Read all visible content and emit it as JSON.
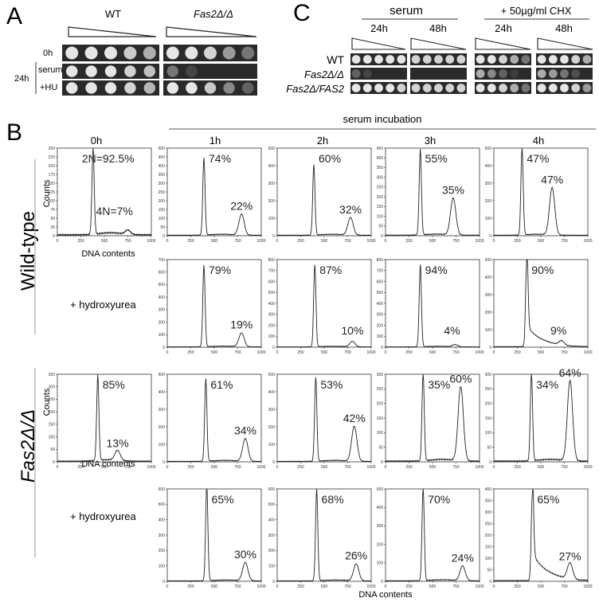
{
  "panels": {
    "A": {
      "letter": "A",
      "col_wt": "WT",
      "col_mut": "Fas2Δ/Δ",
      "row_0h": "0h",
      "row_24h": "24h",
      "row_serum": "serum",
      "row_hu": "+HU"
    },
    "B": {
      "letter": "B",
      "serum_incubation": "serum incubation",
      "time_labels": [
        "0h",
        "1h",
        "2h",
        "3h",
        "4h"
      ],
      "row_wt": "Wild-type",
      "row_mut": "Fas2Δ/Δ",
      "hu_label": "+ hydroxyurea",
      "ylabel": "Counts",
      "xlabel": "DNA contents",
      "xlabel_bottom": "DNA contents"
    },
    "C": {
      "letter": "C",
      "serum": "serum",
      "chx": "+ 50µg/ml CHX",
      "t24": "24h",
      "t48": "48h",
      "rows": [
        "WT",
        "Fas2Δ/Δ",
        "Fas2Δ/FAS2"
      ]
    }
  },
  "chart_data": [
    {
      "type": "line",
      "row": "Wild-type",
      "time": "0h",
      "peak1": 380,
      "peak1_label": "2N=92.5%",
      "peak2": 750,
      "peak2_label": "4N=7%",
      "ylim": [
        0,
        250
      ],
      "yticks": [
        0,
        25,
        50,
        75,
        100,
        125,
        150,
        175,
        200,
        225,
        250
      ],
      "xlim": [
        0,
        1000
      ],
      "ymax_peak": 250,
      "p2_height": 12
    },
    {
      "type": "line",
      "row": "Wild-type",
      "time": "1h",
      "peak1": 390,
      "peak1_label": "74%",
      "peak2": 790,
      "peak2_label": "22%",
      "ylim": [
        0,
        500
      ],
      "yticks": [
        0,
        50,
        100,
        150,
        200,
        250,
        300,
        350,
        400,
        450,
        500
      ],
      "xlim": [
        0,
        1000
      ],
      "ymax_peak": 440,
      "p2_height": 120
    },
    {
      "type": "line",
      "row": "Wild-type",
      "time": "2h",
      "peak1": 390,
      "peak1_label": "60%",
      "peak2": 780,
      "peak2_label": "32%",
      "ylim": [
        0,
        500
      ],
      "yticks": [
        0,
        100,
        200,
        300,
        400,
        500
      ],
      "xlim": [
        0,
        1000
      ],
      "ymax_peak": 400,
      "p2_height": 100
    },
    {
      "type": "line",
      "row": "Wild-type",
      "time": "3h",
      "peak1": 370,
      "peak1_label": "55%",
      "peak2": 720,
      "peak2_label": "35%",
      "ylim": [
        0,
        450
      ],
      "yticks": [
        0,
        50,
        100,
        150,
        200,
        250,
        300,
        350,
        400,
        450
      ],
      "xlim": [
        0,
        1000
      ],
      "ymax_peak": 440,
      "p2_height": 190
    },
    {
      "type": "line",
      "row": "Wild-type",
      "time": "4h",
      "peak1": 300,
      "peak1_label": "47%",
      "peak2": 620,
      "peak2_label": "47%",
      "ylim": [
        0,
        500
      ],
      "yticks": [
        0,
        100,
        200,
        300,
        400,
        500
      ],
      "xlim": [
        0,
        1000
      ],
      "ymax_peak": 500,
      "p2_height": 270
    },
    {
      "type": "line",
      "row": "Wild-type + hydroxyurea",
      "time": "1h",
      "peak1": 390,
      "peak1_label": "79%",
      "peak2": 790,
      "peak2_label": "19%",
      "ylim": [
        0,
        700
      ],
      "yticks": [
        0,
        100,
        200,
        300,
        400,
        500,
        600,
        700
      ],
      "xlim": [
        0,
        1000
      ],
      "ymax_peak": 650,
      "p2_height": 110
    },
    {
      "type": "line",
      "row": "Wild-type + hydroxyurea",
      "time": "2h",
      "peak1": 400,
      "peak1_label": "87%",
      "peak2": 800,
      "peak2_label": "10%",
      "ylim": [
        0,
        800
      ],
      "yticks": [
        0,
        100,
        200,
        300,
        400,
        500,
        600,
        700,
        800
      ],
      "xlim": [
        0,
        1000
      ],
      "ymax_peak": 750,
      "p2_height": 50
    },
    {
      "type": "line",
      "row": "Wild-type + hydroxyurea",
      "time": "3h",
      "peak1": 370,
      "peak1_label": "94%",
      "peak2": 740,
      "peak2_label": "4%",
      "ylim": [
        0,
        800
      ],
      "yticks": [
        0,
        100,
        200,
        300,
        400,
        500,
        600,
        700,
        800
      ],
      "xlim": [
        0,
        1000
      ],
      "ymax_peak": 750,
      "p2_height": 20
    },
    {
      "type": "line",
      "row": "Wild-type + hydroxyurea",
      "time": "4h",
      "peak1": 350,
      "peak1_label": "90%",
      "peak2": 720,
      "peak2_label": "9%",
      "ylim": [
        0,
        500
      ],
      "yticks": [
        0,
        100,
        200,
        300,
        400,
        500
      ],
      "xlim": [
        0,
        1000
      ],
      "ymax_peak": 500,
      "p2_height": 25
    },
    {
      "type": "line",
      "row": "Fas2Δ/Δ",
      "time": "0h",
      "peak1": 430,
      "peak1_label": "85%",
      "peak2": 640,
      "peak2_label": "13%",
      "ylim": [
        0,
        350
      ],
      "yticks": [
        0,
        50,
        100,
        150,
        200,
        250,
        300,
        350
      ],
      "xlim": [
        0,
        1000
      ],
      "ymax_peak": 340,
      "p2_height": 40
    },
    {
      "type": "line",
      "row": "Fas2Δ/Δ",
      "time": "1h",
      "peak1": 410,
      "peak1_label": "61%",
      "peak2": 830,
      "peak2_label": "34%",
      "ylim": [
        0,
        500
      ],
      "yticks": [
        0,
        100,
        200,
        300,
        400,
        500
      ],
      "xlim": [
        0,
        1000
      ],
      "ymax_peak": 470,
      "p2_height": 130
    },
    {
      "type": "line",
      "row": "Fas2Δ/Δ",
      "time": "2h",
      "peak1": 410,
      "peak1_label": "53%",
      "peak2": 820,
      "peak2_label": "42%",
      "ylim": [
        0,
        500
      ],
      "yticks": [
        0,
        100,
        200,
        300,
        400,
        500
      ],
      "xlim": [
        0,
        1000
      ],
      "ymax_peak": 480,
      "p2_height": 200
    },
    {
      "type": "line",
      "row": "Fas2Δ/Δ",
      "time": "3h",
      "peak1": 400,
      "peak1_label": "35%",
      "peak2": 800,
      "peak2_label": "60%",
      "ylim": [
        0,
        300
      ],
      "yticks": [
        0,
        50,
        100,
        150,
        200,
        250,
        300
      ],
      "xlim": [
        0,
        1000
      ],
      "ymax_peak": 300,
      "p2_height": 255
    },
    {
      "type": "line",
      "row": "Fas2Δ/Δ",
      "time": "4h",
      "peak1": 400,
      "peak1_label": "34%",
      "peak2": 810,
      "peak2_label": "64%",
      "ylim": [
        0,
        300
      ],
      "yticks": [
        0,
        50,
        100,
        150,
        200,
        250,
        300
      ],
      "xlim": [
        0,
        1000
      ],
      "ymax_peak": 300,
      "p2_height": 275
    },
    {
      "type": "line",
      "row": "Fas2Δ/Δ + hydroxyurea",
      "time": "1h",
      "peak1": 420,
      "peak1_label": "65%",
      "peak2": 830,
      "peak2_label": "30%",
      "ylim": [
        0,
        600
      ],
      "yticks": [
        0,
        100,
        200,
        300,
        400,
        500,
        600
      ],
      "xlim": [
        0,
        1000
      ],
      "ymax_peak": 630,
      "p2_height": 120
    },
    {
      "type": "line",
      "row": "Fas2Δ/Δ + hydroxyurea",
      "time": "2h",
      "peak1": 420,
      "peak1_label": "68%",
      "peak2": 840,
      "peak2_label": "26%",
      "ylim": [
        0,
        600
      ],
      "yticks": [
        0,
        100,
        200,
        300,
        400,
        500,
        600
      ],
      "xlim": [
        0,
        1000
      ],
      "ymax_peak": 600,
      "p2_height": 110
    },
    {
      "type": "line",
      "row": "Fas2Δ/Δ + hydroxyurea",
      "time": "3h",
      "peak1": 400,
      "peak1_label": "70%",
      "peak2": 820,
      "peak2_label": "24%",
      "ylim": [
        0,
        500
      ],
      "yticks": [
        0,
        100,
        200,
        300,
        400,
        500
      ],
      "xlim": [
        0,
        1000
      ],
      "ymax_peak": 500,
      "p2_height": 80
    },
    {
      "type": "line",
      "row": "Fas2Δ/Δ + hydroxyurea",
      "time": "4h",
      "peak1": 410,
      "peak1_label": "65%",
      "peak2": 810,
      "peak2_label": "27%",
      "ylim": [
        0,
        400
      ],
      "yticks": [
        0,
        50,
        100,
        150,
        200,
        250,
        300,
        350,
        400
      ],
      "xlim": [
        0,
        1000
      ],
      "ymax_peak": 380,
      "p2_height": 70
    }
  ]
}
